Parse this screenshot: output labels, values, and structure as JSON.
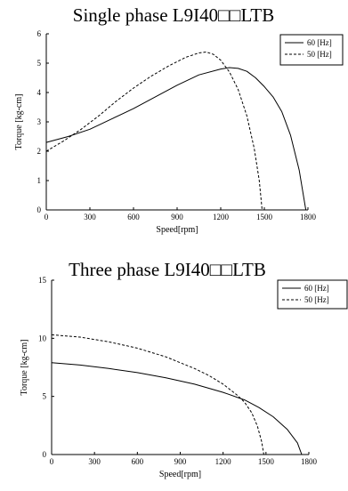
{
  "chart_data": [
    {
      "type": "line",
      "title": "Single phase L9I40□□LTB",
      "xlabel": "Speed[rpm]",
      "ylabel": "Torque [kg-cm]",
      "xlim": [
        0,
        1800
      ],
      "ylim": [
        0,
        6
      ],
      "xticks": [
        "0",
        "300",
        "600",
        "900",
        "1200",
        "1500",
        "1800"
      ],
      "yticks": [
        "0",
        "1",
        "2",
        "3",
        "4",
        "5",
        "6"
      ],
      "grid": false,
      "legend_position": "top-right",
      "series": [
        {
          "name": "60 [Hz]",
          "style": "solid",
          "points": [
            [
              0,
              2.3
            ],
            [
              150,
              2.5
            ],
            [
              300,
              2.75
            ],
            [
              450,
              3.1
            ],
            [
              600,
              3.45
            ],
            [
              750,
              3.85
            ],
            [
              900,
              4.25
            ],
            [
              1050,
              4.6
            ],
            [
              1200,
              4.8
            ],
            [
              1260,
              4.85
            ],
            [
              1320,
              4.82
            ],
            [
              1380,
              4.72
            ],
            [
              1440,
              4.5
            ],
            [
              1500,
              4.2
            ],
            [
              1560,
              3.85
            ],
            [
              1620,
              3.35
            ],
            [
              1680,
              2.55
            ],
            [
              1740,
              1.35
            ],
            [
              1785,
              0.0
            ]
          ]
        },
        {
          "name": "50 [Hz]",
          "style": "dashed",
          "points": [
            [
              0,
              2.0
            ],
            [
              120,
              2.35
            ],
            [
              240,
              2.75
            ],
            [
              360,
              3.2
            ],
            [
              480,
              3.7
            ],
            [
              600,
              4.15
            ],
            [
              720,
              4.55
            ],
            [
              840,
              4.9
            ],
            [
              960,
              5.2
            ],
            [
              1050,
              5.35
            ],
            [
              1100,
              5.38
            ],
            [
              1150,
              5.3
            ],
            [
              1200,
              5.1
            ],
            [
              1260,
              4.7
            ],
            [
              1320,
              4.1
            ],
            [
              1380,
              3.2
            ],
            [
              1430,
              2.1
            ],
            [
              1465,
              1.0
            ],
            [
              1485,
              0.0
            ]
          ]
        }
      ]
    },
    {
      "type": "line",
      "title": "Three phase L9I40□□LTB",
      "xlabel": "Speed[rpm]",
      "ylabel": "Torque [kg-cm]",
      "xlim": [
        0,
        1800
      ],
      "ylim": [
        0,
        15
      ],
      "xticks": [
        "0",
        "300",
        "600",
        "900",
        "1200",
        "1500",
        "1800"
      ],
      "yticks": [
        "0",
        "5",
        "10",
        "15"
      ],
      "grid": false,
      "legend_position": "top-right",
      "series": [
        {
          "name": "60 [Hz]",
          "style": "solid",
          "points": [
            [
              0,
              7.9
            ],
            [
              200,
              7.7
            ],
            [
              400,
              7.4
            ],
            [
              600,
              7.05
            ],
            [
              800,
              6.6
            ],
            [
              1000,
              6.05
            ],
            [
              1200,
              5.35
            ],
            [
              1350,
              4.7
            ],
            [
              1450,
              4.05
            ],
            [
              1550,
              3.25
            ],
            [
              1650,
              2.15
            ],
            [
              1720,
              1.0
            ],
            [
              1750,
              0.0
            ]
          ]
        },
        {
          "name": "50 [Hz]",
          "style": "dashed",
          "points": [
            [
              0,
              10.3
            ],
            [
              200,
              10.1
            ],
            [
              400,
              9.7
            ],
            [
              600,
              9.15
            ],
            [
              800,
              8.4
            ],
            [
              1000,
              7.4
            ],
            [
              1100,
              6.8
            ],
            [
              1200,
              6.05
            ],
            [
              1300,
              5.1
            ],
            [
              1350,
              4.5
            ],
            [
              1400,
              3.6
            ],
            [
              1440,
              2.45
            ],
            [
              1470,
              1.1
            ],
            [
              1485,
              0.0
            ]
          ]
        }
      ]
    }
  ]
}
